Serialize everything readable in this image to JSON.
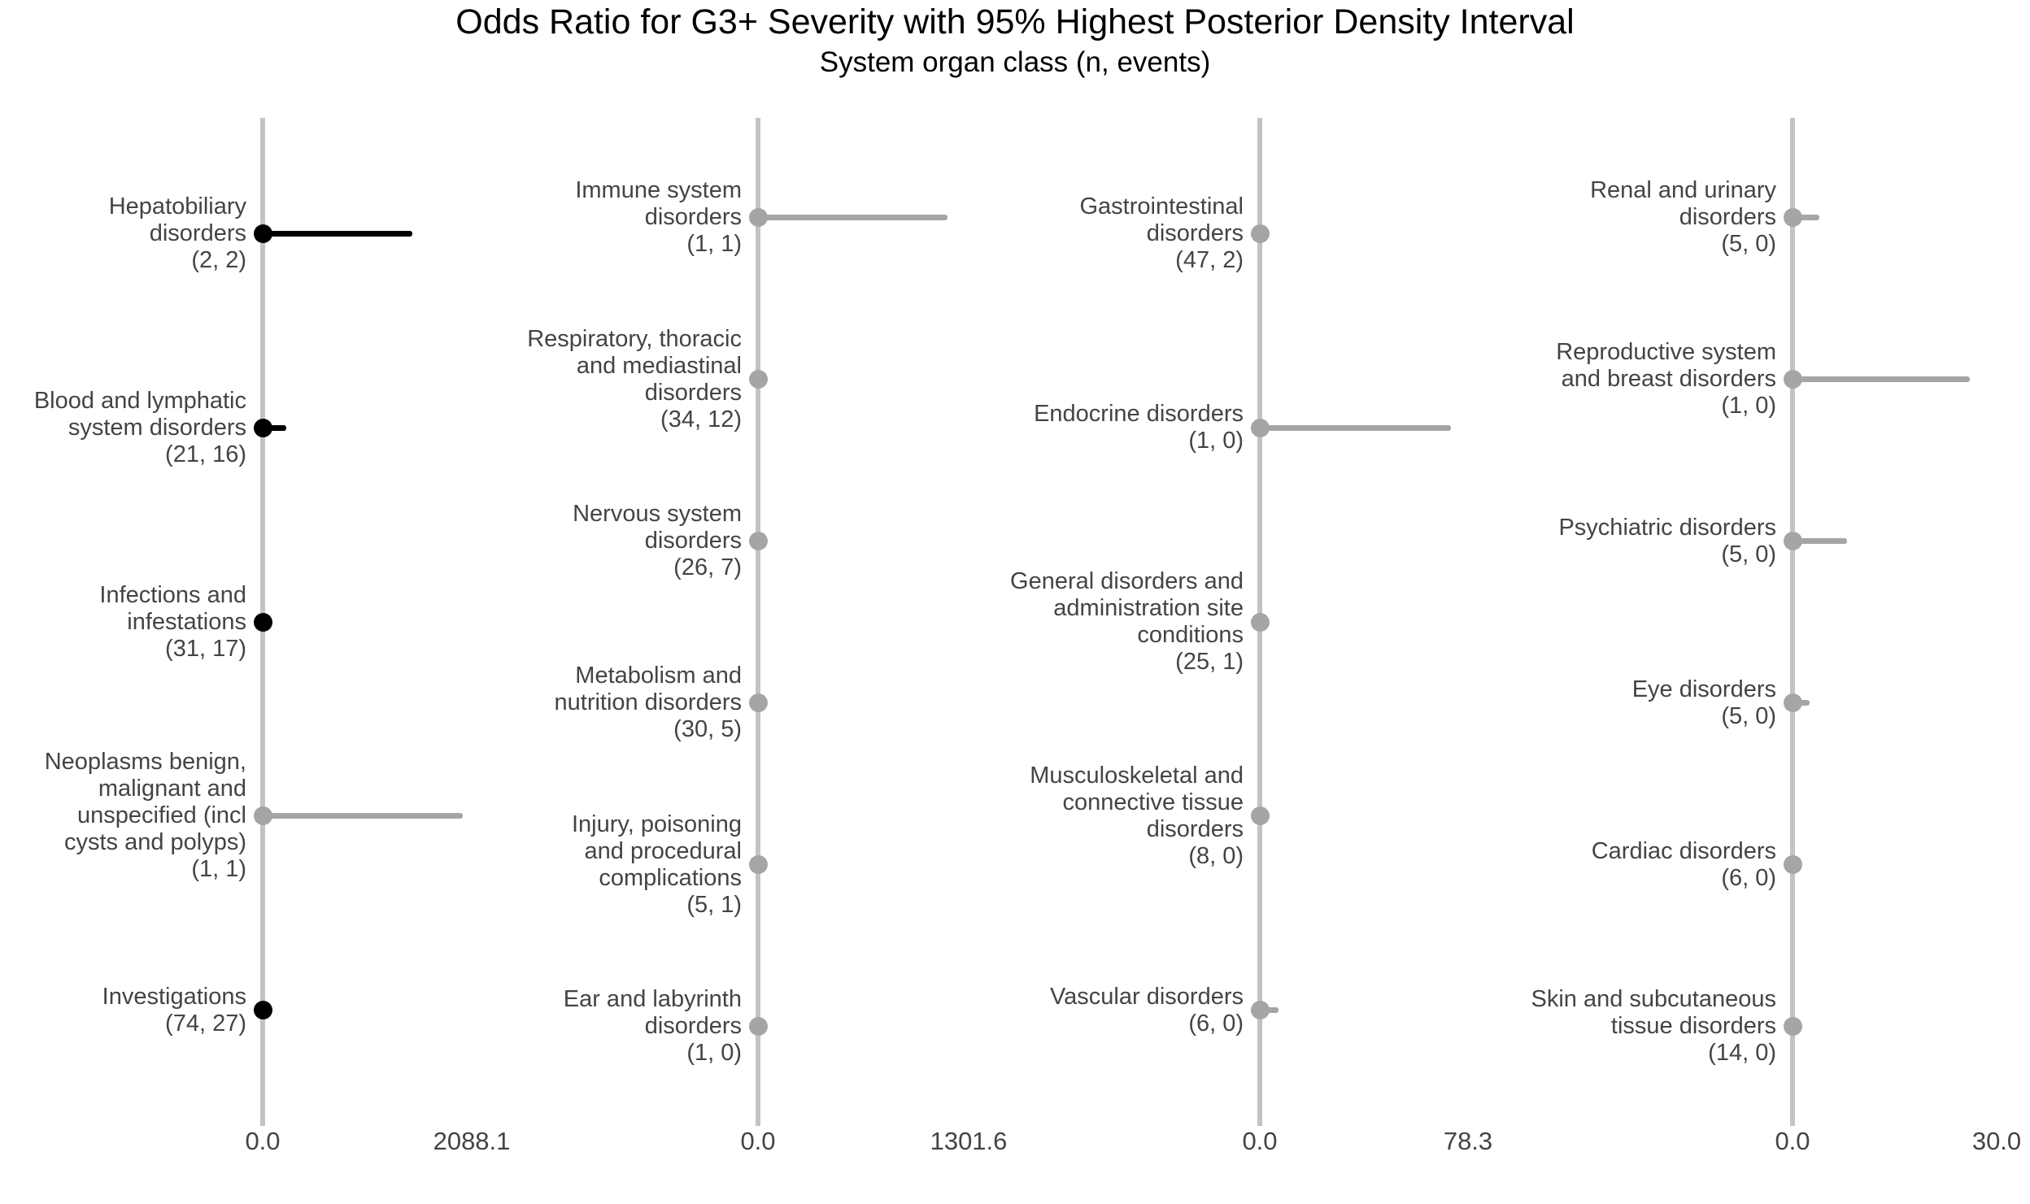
{
  "title": "Odds Ratio for G3+ Severity with 95% Highest Posterior Density Interval",
  "subtitle": "System organ class (n, events)",
  "colors": {
    "point_black": "#000000",
    "point_gray": "#a5a5a5",
    "axis_line": "#c3c3c3",
    "label_text": "#444444",
    "title_text": "#000000"
  },
  "chart_data": {
    "type": "scatter",
    "subtype": "forest-plot-dot-interval",
    "title": "Odds Ratio for G3+ Severity with 95% Highest Posterior Density Interval",
    "subtitle": "System organ class (n, events)",
    "grid": "off",
    "legend": "none",
    "x_axis_note": "four independent horizontal scales, one per panel; vertical reference line drawn at 0.0 in each panel; all point estimates sit at 0.0 and 95% HPD intervals extend right",
    "min_tick_label": "0.0",
    "panels": [
      {
        "x_min": 0.0,
        "x_max": 2088.1,
        "x_min_label": "0.0",
        "x_max_label": "2088.1",
        "items": [
          {
            "soc": "Hepatobiliary disorders",
            "label_lines": [
              "Hepatobiliary",
              "disorders",
              "(2, 2)"
            ],
            "n": 2,
            "events": 2,
            "color_class": "black",
            "or_estimate": 0.0,
            "hpd_upper": 1495
          },
          {
            "soc": "Blood and lymphatic system disorders",
            "label_lines": [
              "Blood and lymphatic",
              "system disorders",
              "(21, 16)"
            ],
            "n": 21,
            "events": 16,
            "color_class": "black",
            "or_estimate": 0.0,
            "hpd_upper": 235
          },
          {
            "soc": "Infections and infestations",
            "label_lines": [
              "Infections and",
              "infestations",
              "(31, 17)"
            ],
            "n": 31,
            "events": 17,
            "color_class": "black",
            "or_estimate": 0.0,
            "hpd_upper": 0
          },
          {
            "soc": "Neoplasms benign, malignant and unspecified (incl cysts and polyps)",
            "label_lines": [
              "Neoplasms benign,",
              "malignant and",
              "unspecified (incl",
              "cysts and polyps)",
              "(1, 1)"
            ],
            "n": 1,
            "events": 1,
            "color_class": "gray",
            "or_estimate": 0.0,
            "hpd_upper": 2000
          },
          {
            "soc": "Investigations",
            "label_lines": [
              "Investigations",
              "(74, 27)"
            ],
            "n": 74,
            "events": 27,
            "color_class": "black",
            "or_estimate": 0.0,
            "hpd_upper": 0
          }
        ]
      },
      {
        "x_min": 0.0,
        "x_max": 1301.6,
        "x_min_label": "0.0",
        "x_max_label": "1301.6",
        "items": [
          {
            "soc": "Immune system disorders",
            "label_lines": [
              "Immune system",
              "disorders",
              "(1, 1)"
            ],
            "n": 1,
            "events": 1,
            "color_class": "gray",
            "or_estimate": 0.0,
            "hpd_upper": 1170
          },
          {
            "soc": "Respiratory, thoracic and mediastinal disorders",
            "label_lines": [
              "Respiratory, thoracic",
              "and mediastinal",
              "disorders",
              "(34, 12)"
            ],
            "n": 34,
            "events": 12,
            "color_class": "gray",
            "or_estimate": 0.0,
            "hpd_upper": 0
          },
          {
            "soc": "Nervous system disorders",
            "label_lines": [
              "Nervous system",
              "disorders",
              "(26, 7)"
            ],
            "n": 26,
            "events": 7,
            "color_class": "gray",
            "or_estimate": 0.0,
            "hpd_upper": 0
          },
          {
            "soc": "Metabolism and nutrition disorders",
            "label_lines": [
              "Metabolism and",
              "nutrition disorders",
              "(30, 5)"
            ],
            "n": 30,
            "events": 5,
            "color_class": "gray",
            "or_estimate": 0.0,
            "hpd_upper": 0
          },
          {
            "soc": "Injury, poisoning and procedural complications",
            "label_lines": [
              "Injury, poisoning",
              "and procedural",
              "complications",
              "(5, 1)"
            ],
            "n": 5,
            "events": 1,
            "color_class": "gray",
            "or_estimate": 0.0,
            "hpd_upper": 0
          },
          {
            "soc": "Ear and labyrinth disorders",
            "label_lines": [
              "Ear and labyrinth",
              "disorders",
              "(1, 0)"
            ],
            "n": 1,
            "events": 0,
            "color_class": "gray",
            "or_estimate": 0.0,
            "hpd_upper": 0
          }
        ]
      },
      {
        "x_min": 0.0,
        "x_max": 78.3,
        "x_min_label": "0.0",
        "x_max_label": "78.3",
        "items": [
          {
            "soc": "Gastrointestinal disorders",
            "label_lines": [
              "Gastrointestinal",
              "disorders",
              "(47, 2)"
            ],
            "n": 47,
            "events": 2,
            "color_class": "gray",
            "or_estimate": 0.0,
            "hpd_upper": 0
          },
          {
            "soc": "Endocrine disorders",
            "label_lines": [
              "Endocrine disorders",
              "(1, 0)"
            ],
            "n": 1,
            "events": 0,
            "color_class": "gray",
            "or_estimate": 0.0,
            "hpd_upper": 72
          },
          {
            "soc": "General disorders and administration site conditions",
            "label_lines": [
              "General disorders and",
              "administration site",
              "conditions",
              "(25, 1)"
            ],
            "n": 25,
            "events": 1,
            "color_class": "gray",
            "or_estimate": 0.0,
            "hpd_upper": 0
          },
          {
            "soc": "Musculoskeletal and connective tissue disorders",
            "label_lines": [
              "Musculoskeletal and",
              "connective tissue",
              "disorders",
              "(8, 0)"
            ],
            "n": 8,
            "events": 0,
            "color_class": "gray",
            "or_estimate": 0.0,
            "hpd_upper": 2.5
          },
          {
            "soc": "Vascular disorders",
            "label_lines": [
              "Vascular disorders",
              "(6, 0)"
            ],
            "n": 6,
            "events": 0,
            "color_class": "gray",
            "or_estimate": 0.0,
            "hpd_upper": 7
          }
        ]
      },
      {
        "x_min": 0.0,
        "x_max": 30.0,
        "x_min_label": "0.0",
        "x_max_label": "30.0",
        "items": [
          {
            "soc": "Renal and urinary disorders",
            "label_lines": [
              "Renal and urinary",
              "disorders",
              "(5, 0)"
            ],
            "n": 5,
            "events": 0,
            "color_class": "gray",
            "or_estimate": 0.0,
            "hpd_upper": 4
          },
          {
            "soc": "Reproductive system and breast disorders",
            "label_lines": [
              "Reproductive system",
              "and breast disorders",
              "(1, 0)"
            ],
            "n": 1,
            "events": 0,
            "color_class": "gray",
            "or_estimate": 0.0,
            "hpd_upper": 26
          },
          {
            "soc": "Psychiatric disorders",
            "label_lines": [
              "Psychiatric disorders",
              "(5, 0)"
            ],
            "n": 5,
            "events": 0,
            "color_class": "gray",
            "or_estimate": 0.0,
            "hpd_upper": 8
          },
          {
            "soc": "Eye disorders",
            "label_lines": [
              "Eye disorders",
              "(5, 0)"
            ],
            "n": 5,
            "events": 0,
            "color_class": "gray",
            "or_estimate": 0.0,
            "hpd_upper": 2.5
          },
          {
            "soc": "Cardiac disorders",
            "label_lines": [
              "Cardiac disorders",
              "(6, 0)"
            ],
            "n": 6,
            "events": 0,
            "color_class": "gray",
            "or_estimate": 0.0,
            "hpd_upper": 0
          },
          {
            "soc": "Skin and subcutaneous tissue disorders",
            "label_lines": [
              "Skin and subcutaneous",
              "tissue disorders",
              "(14, 0)"
            ],
            "n": 14,
            "events": 0,
            "color_class": "gray",
            "or_estimate": 0.0,
            "hpd_upper": 0
          }
        ]
      }
    ]
  }
}
